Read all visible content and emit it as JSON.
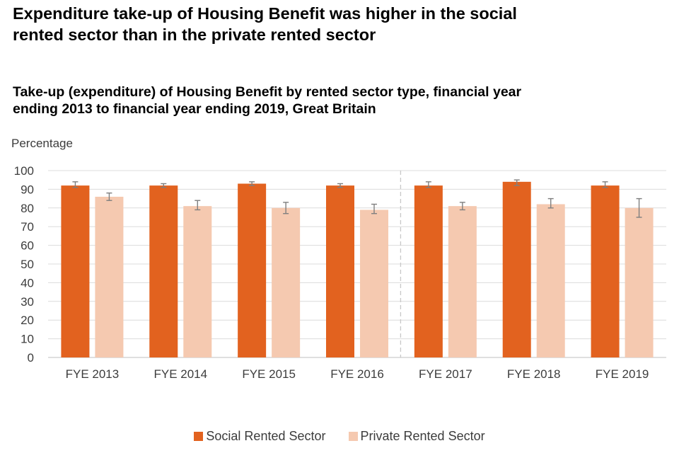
{
  "headline": "Expenditure take-up of Housing Benefit was higher in the social rented sector than in the private rented sector",
  "chart_data": {
    "type": "bar",
    "title": "Take-up (expenditure) of Housing Benefit by rented sector type, financial year ending 2013 to financial year ending 2019, Great Britain",
    "ylabel": "Percentage",
    "xlabel": "",
    "ylim": [
      0,
      100
    ],
    "yticks": [
      0,
      10,
      20,
      30,
      40,
      50,
      60,
      70,
      80,
      90,
      100
    ],
    "grid": true,
    "legend_position": "bottom",
    "categories": [
      "FYE 2013",
      "FYE 2014",
      "FYE 2015",
      "FYE 2016",
      "FYE 2017",
      "FYE 2018",
      "FYE 2019"
    ],
    "series_break_after": "FYE 2016",
    "series": [
      {
        "name": "Social Rented Sector",
        "color": "#e2621f",
        "values": [
          92,
          92,
          93,
          92,
          92,
          94,
          92
        ],
        "error_low": [
          91,
          91,
          92,
          91,
          91,
          92,
          91
        ],
        "error_high": [
          94,
          93,
          94,
          93,
          94,
          95,
          94
        ]
      },
      {
        "name": "Private Rented Sector",
        "color": "#f5c9b0",
        "values": [
          86,
          81,
          80,
          79,
          81,
          82,
          80
        ],
        "error_low": [
          84,
          79,
          77,
          77,
          79,
          80,
          75
        ],
        "error_high": [
          88,
          84,
          83,
          82,
          83,
          85,
          85
        ]
      }
    ]
  }
}
